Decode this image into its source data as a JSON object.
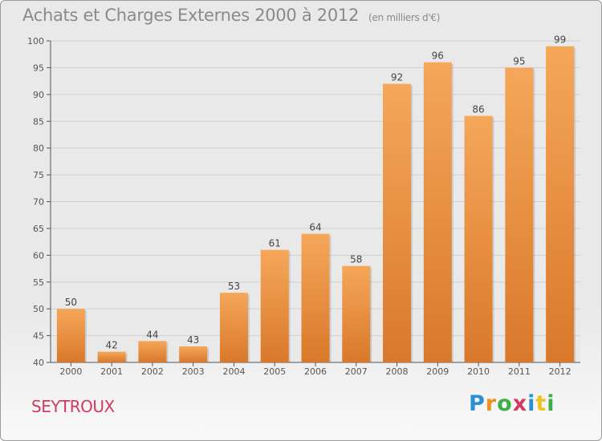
{
  "header": {
    "title": "Achats et Charges Externes 2000 à 2012",
    "unit": "(en milliers d'€)"
  },
  "commune": "SEYTROUX",
  "brand": {
    "letters": [
      {
        "ch": "P",
        "color": "#2b8fd4"
      },
      {
        "ch": "r",
        "color": "#f0901c"
      },
      {
        "ch": "o",
        "color": "#3fae49"
      },
      {
        "ch": "x",
        "color": "#d43a5e"
      },
      {
        "ch": "i",
        "color": "#2b8fd4"
      },
      {
        "ch": "t",
        "color": "#f0c21c"
      },
      {
        "ch": "i",
        "color": "#3fae49"
      }
    ]
  },
  "colors": {
    "bar_light": "#f5a75a",
    "bar_dark": "#d9782a",
    "grid": "#d0d0d0"
  },
  "chart_data": {
    "type": "bar",
    "title": "Achats et Charges Externes 2000 à 2012",
    "xlabel": "",
    "ylabel": "(en milliers d'€)",
    "categories": [
      "2000",
      "2001",
      "2002",
      "2003",
      "2004",
      "2005",
      "2006",
      "2007",
      "2008",
      "2009",
      "2010",
      "2011",
      "2012"
    ],
    "values": [
      50,
      42,
      44,
      43,
      53,
      61,
      64,
      58,
      92,
      96,
      86,
      95,
      99
    ],
    "ylim": [
      40,
      100
    ],
    "yticks": [
      40,
      45,
      50,
      55,
      60,
      65,
      70,
      75,
      80,
      85,
      90,
      95,
      100
    ],
    "grid": true
  }
}
